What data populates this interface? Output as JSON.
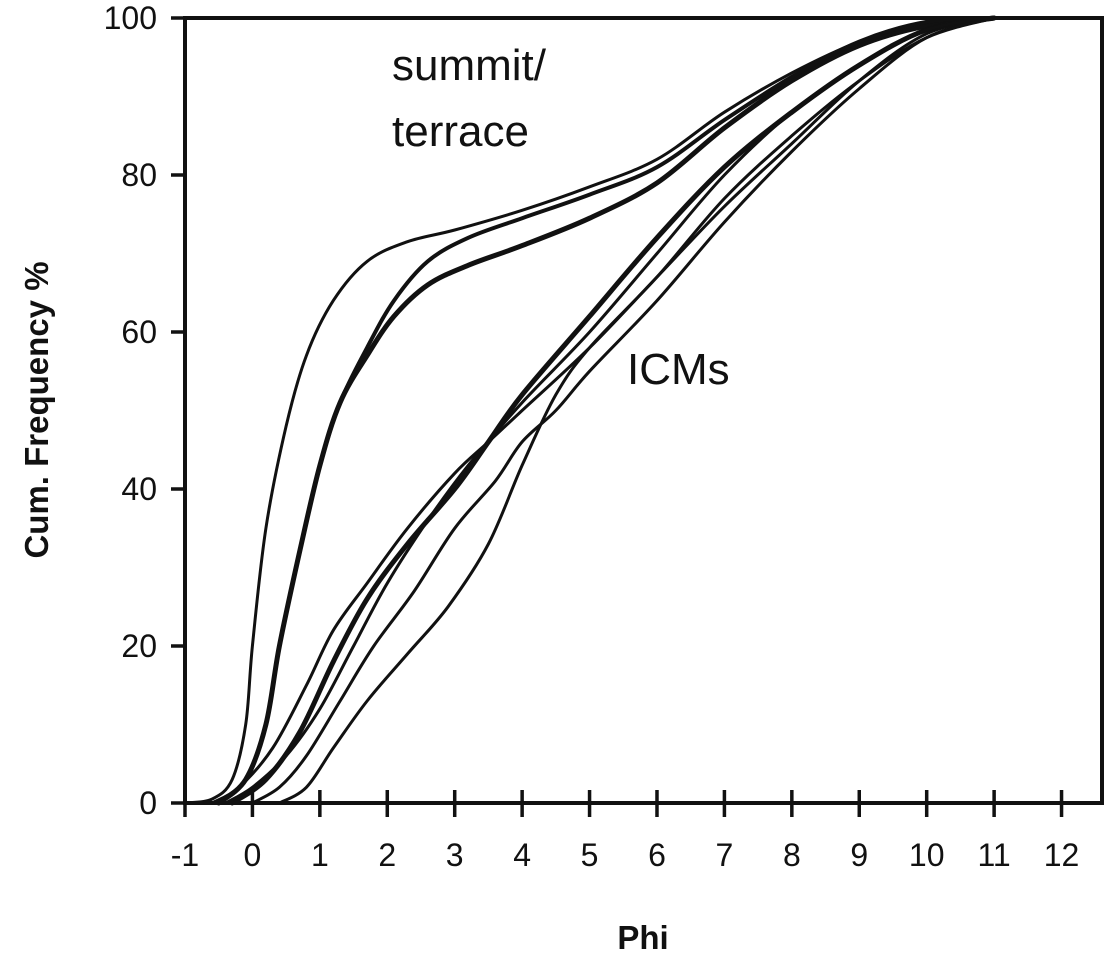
{
  "chart_data": {
    "type": "line",
    "title": "",
    "xlabel": "Phi",
    "ylabel": "Cum. Frequency %",
    "xlim": [
      -1,
      12.6
    ],
    "ylim": [
      0,
      100
    ],
    "x_ticks": [
      -1,
      0,
      1,
      2,
      3,
      4,
      5,
      6,
      7,
      8,
      9,
      10,
      11,
      12
    ],
    "y_ticks": [
      0,
      20,
      40,
      60,
      80,
      100
    ],
    "grid": false,
    "legend": "none",
    "line_color": "#111111",
    "annotations": [
      {
        "text": "summit/",
        "group": "summit-terrace"
      },
      {
        "text": "terrace",
        "group": "summit-terrace"
      },
      {
        "text": "ICMs",
        "group": "ICMs"
      }
    ],
    "series": [
      {
        "group": "summit-terrace",
        "width": 3,
        "points": [
          [
            -1,
            0
          ],
          [
            -0.6,
            0.5
          ],
          [
            -0.3,
            3
          ],
          [
            -0.1,
            10
          ],
          [
            0,
            20
          ],
          [
            0.2,
            35
          ],
          [
            0.5,
            48
          ],
          [
            0.8,
            57
          ],
          [
            1.2,
            64
          ],
          [
            1.7,
            69
          ],
          [
            2.3,
            71.5
          ],
          [
            3,
            73
          ],
          [
            4,
            75.5
          ],
          [
            5,
            78.5
          ],
          [
            6,
            82
          ],
          [
            7,
            88
          ],
          [
            8,
            93
          ],
          [
            9,
            97
          ],
          [
            10,
            99.5
          ],
          [
            11,
            100
          ],
          [
            12.6,
            100
          ]
        ]
      },
      {
        "group": "summit-terrace",
        "width": 5,
        "points": [
          [
            -0.5,
            0
          ],
          [
            -0.1,
            3
          ],
          [
            0.2,
            10
          ],
          [
            0.4,
            20
          ],
          [
            0.7,
            32
          ],
          [
            1,
            43
          ],
          [
            1.3,
            51
          ],
          [
            1.7,
            57
          ],
          [
            2.1,
            62
          ],
          [
            2.6,
            66
          ],
          [
            3.2,
            68.5
          ],
          [
            4,
            71
          ],
          [
            5,
            74.5
          ],
          [
            6,
            79
          ],
          [
            7,
            86
          ],
          [
            8,
            92
          ],
          [
            9,
            96.5
          ],
          [
            10,
            99
          ],
          [
            11,
            100
          ]
        ]
      },
      {
        "group": "summit-terrace",
        "width": 4,
        "points": [
          [
            -0.5,
            0
          ],
          [
            -0.1,
            3
          ],
          [
            0.2,
            10
          ],
          [
            0.4,
            20
          ],
          [
            0.7,
            32
          ],
          [
            1,
            43
          ],
          [
            1.3,
            51
          ],
          [
            1.7,
            58
          ],
          [
            2.1,
            64
          ],
          [
            2.6,
            69
          ],
          [
            3.2,
            72
          ],
          [
            4,
            74.5
          ],
          [
            5,
            77.5
          ],
          [
            6,
            81
          ],
          [
            7,
            87
          ],
          [
            8,
            92.5
          ],
          [
            9,
            97
          ],
          [
            10,
            99.5
          ],
          [
            11,
            100
          ]
        ]
      },
      {
        "group": "ICMs",
        "width": 3,
        "points": [
          [
            -0.6,
            0
          ],
          [
            -0.2,
            2
          ],
          [
            0.3,
            7
          ],
          [
            0.8,
            15
          ],
          [
            1.2,
            22
          ],
          [
            1.7,
            28
          ],
          [
            2.3,
            35
          ],
          [
            3,
            42
          ],
          [
            3.5,
            46
          ],
          [
            4,
            50
          ],
          [
            5,
            58
          ],
          [
            6,
            67
          ],
          [
            7,
            76
          ],
          [
            8,
            84
          ],
          [
            9,
            92
          ],
          [
            10,
            98
          ],
          [
            11,
            100
          ]
        ]
      },
      {
        "group": "ICMs",
        "width": 5,
        "points": [
          [
            -0.3,
            0
          ],
          [
            0.2,
            3
          ],
          [
            0.7,
            9
          ],
          [
            1.2,
            18
          ],
          [
            1.7,
            26
          ],
          [
            2.3,
            33
          ],
          [
            3,
            40
          ],
          [
            3.5,
            46
          ],
          [
            4,
            52
          ],
          [
            5,
            62
          ],
          [
            6,
            72
          ],
          [
            7,
            81
          ],
          [
            8,
            88
          ],
          [
            9,
            94
          ],
          [
            10,
            98.5
          ],
          [
            11,
            100
          ]
        ]
      },
      {
        "group": "ICMs",
        "width": 3,
        "points": [
          [
            -0.4,
            0
          ],
          [
            0,
            2
          ],
          [
            0.5,
            6
          ],
          [
            1,
            12
          ],
          [
            1.5,
            20
          ],
          [
            2,
            28
          ],
          [
            2.6,
            36
          ],
          [
            3.2,
            43
          ],
          [
            4,
            51
          ],
          [
            5,
            60
          ],
          [
            6,
            70
          ],
          [
            7,
            80
          ],
          [
            8,
            88
          ],
          [
            9,
            94
          ],
          [
            10,
            98.5
          ],
          [
            11,
            100
          ]
        ]
      },
      {
        "group": "ICMs",
        "width": 3,
        "points": [
          [
            0,
            0
          ],
          [
            0.4,
            2
          ],
          [
            0.8,
            6
          ],
          [
            1.3,
            13
          ],
          [
            1.8,
            20
          ],
          [
            2.4,
            27
          ],
          [
            3,
            35
          ],
          [
            3.6,
            41
          ],
          [
            4,
            46
          ],
          [
            4.5,
            50
          ],
          [
            5,
            55
          ],
          [
            6,
            64
          ],
          [
            7,
            74
          ],
          [
            8,
            83
          ],
          [
            9,
            91
          ],
          [
            10,
            97.5
          ],
          [
            11,
            100
          ]
        ]
      },
      {
        "group": "ICMs",
        "width": 3,
        "points": [
          [
            0.4,
            0
          ],
          [
            0.8,
            2
          ],
          [
            1.2,
            7
          ],
          [
            1.7,
            13
          ],
          [
            2.3,
            19
          ],
          [
            2.9,
            25
          ],
          [
            3.5,
            33
          ],
          [
            4,
            43
          ],
          [
            4.5,
            52
          ],
          [
            5,
            58
          ],
          [
            6,
            67
          ],
          [
            7,
            77
          ],
          [
            8,
            85
          ],
          [
            9,
            92
          ],
          [
            10,
            97.5
          ],
          [
            11,
            100
          ]
        ]
      }
    ]
  }
}
